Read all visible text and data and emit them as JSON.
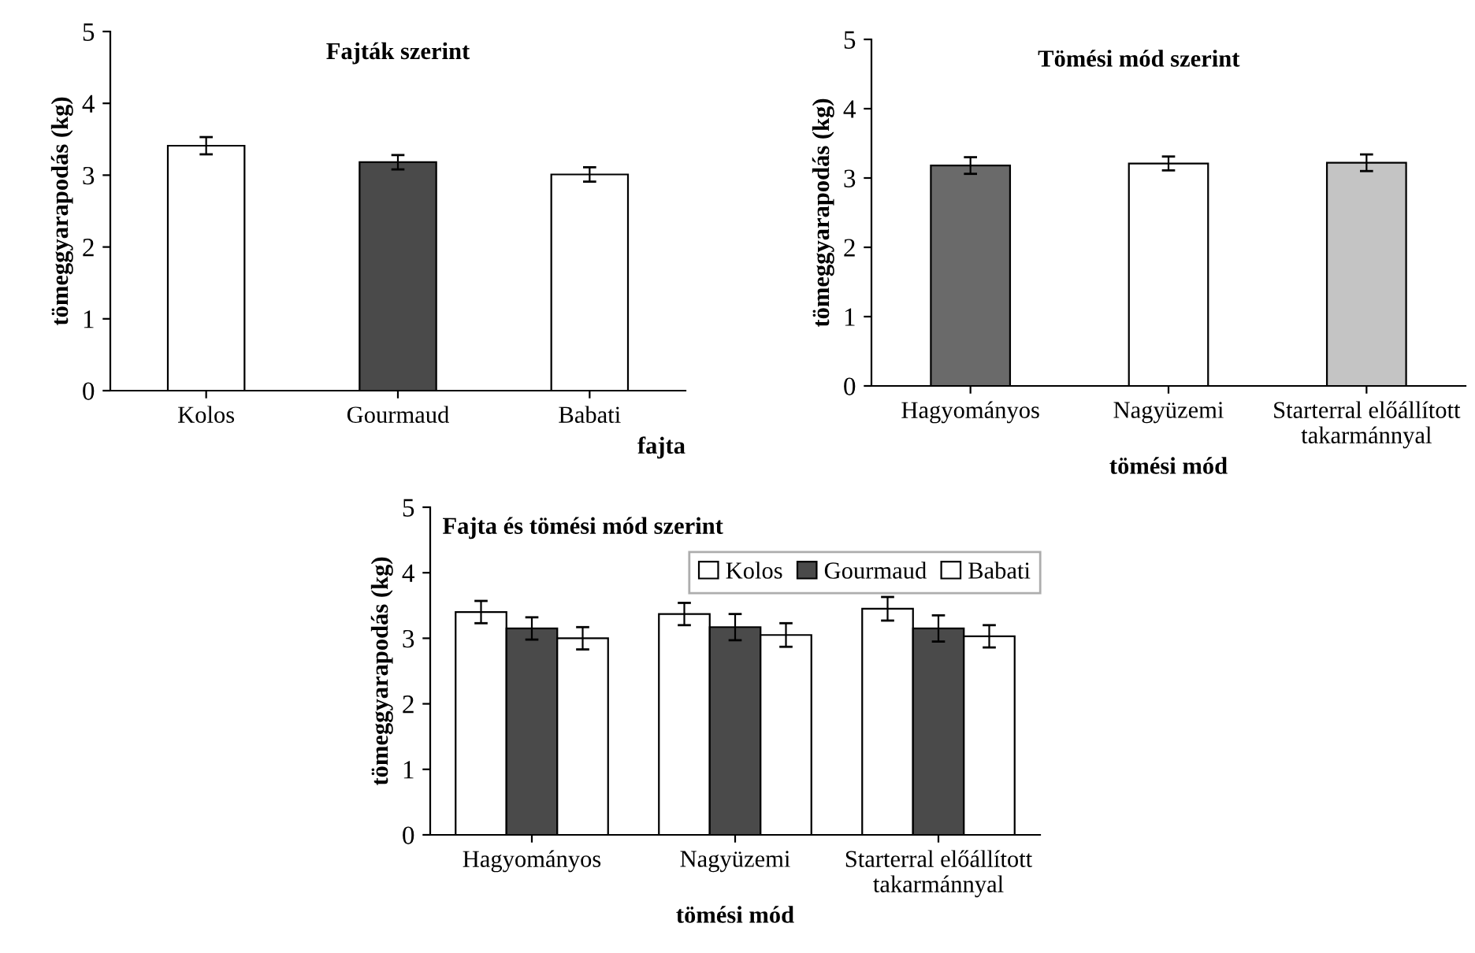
{
  "chart_data": [
    {
      "type": "bar",
      "title": "Fajták szerint",
      "xlabel": "fajta",
      "ylabel": "tömeggyarapodás (kg)",
      "categories": [
        "Kolos",
        "Gourmaud",
        "Babati"
      ],
      "values": [
        3.41,
        3.18,
        3.01
      ],
      "errors": [
        0.12,
        0.1,
        0.1
      ],
      "colors": [
        "#ffffff",
        "#4a4a4a",
        "#ffffff"
      ],
      "ylim": [
        0,
        5
      ],
      "yticks": [
        0,
        1,
        2,
        3,
        4,
        5
      ],
      "grid": false,
      "legend": false
    },
    {
      "type": "bar",
      "title": "Tömési mód szerint",
      "xlabel": "tömési mód",
      "ylabel": "tömeggyarapodás (kg)",
      "categories": [
        "Hagyományos",
        "Nagyüzemi",
        "Starterral előállított\ntakarmánnyal"
      ],
      "values": [
        3.18,
        3.21,
        3.22
      ],
      "errors": [
        0.12,
        0.1,
        0.12
      ],
      "colors": [
        "#6a6a6a",
        "#ffffff",
        "#c4c4c4"
      ],
      "ylim": [
        0,
        5
      ],
      "yticks": [
        0,
        1,
        2,
        3,
        4,
        5
      ],
      "grid": false,
      "legend": false
    },
    {
      "type": "bar",
      "title": "Fajta és tömési mód szerint",
      "xlabel": "tömési mód",
      "ylabel": "tömeggyarapodás (kg)",
      "categories": [
        "Hagyományos",
        "Nagyüzemi",
        "Starterral előállított\ntakarmánnyal"
      ],
      "series": [
        {
          "name": "Kolos",
          "color": "#ffffff",
          "values": [
            3.4,
            3.37,
            3.45
          ],
          "errors": [
            0.17,
            0.17,
            0.18
          ]
        },
        {
          "name": "Gourmaud",
          "color": "#4a4a4a",
          "values": [
            3.15,
            3.17,
            3.15
          ],
          "errors": [
            0.17,
            0.2,
            0.2
          ]
        },
        {
          "name": "Babati",
          "color": "#ffffff",
          "values": [
            3.0,
            3.05,
            3.03
          ],
          "errors": [
            0.17,
            0.18,
            0.17
          ]
        }
      ],
      "ylim": [
        0,
        5
      ],
      "yticks": [
        0,
        1,
        2,
        3,
        4,
        5
      ],
      "grid": false,
      "legend": "top right"
    }
  ]
}
